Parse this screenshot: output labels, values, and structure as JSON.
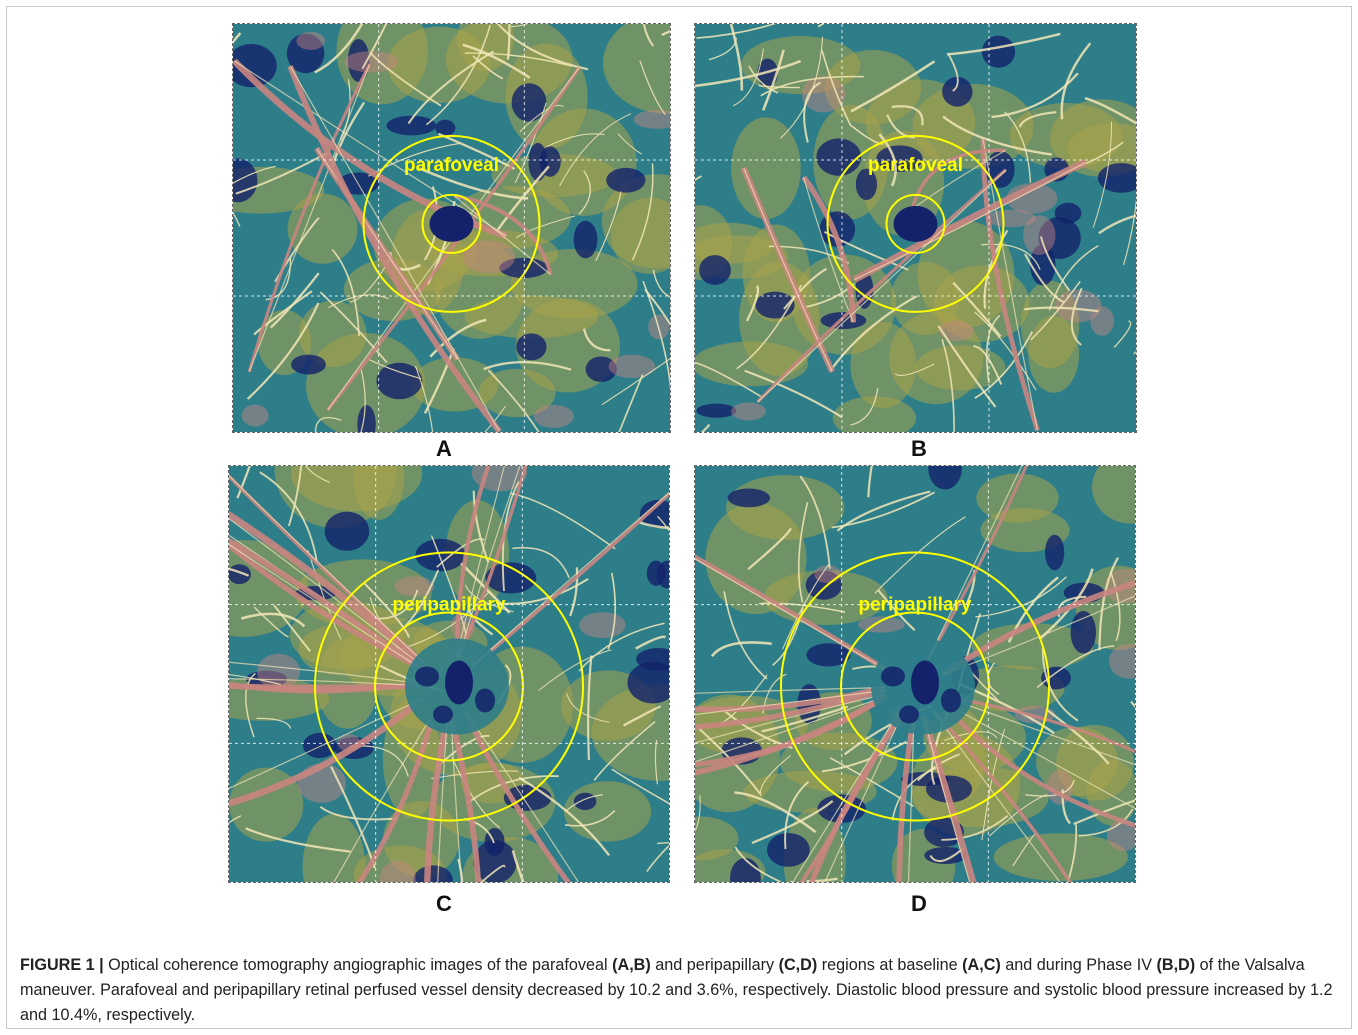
{
  "panels": [
    {
      "label": "A",
      "region_label": "parafoveal",
      "type": "parafoveal"
    },
    {
      "label": "B",
      "region_label": "parafoveal",
      "type": "parafoveal"
    },
    {
      "label": "C",
      "region_label": "peripapillary",
      "type": "peripapillary"
    },
    {
      "label": "D",
      "region_label": "peripapillary",
      "type": "peripapillary"
    }
  ],
  "colors": {
    "background": "#2e7e8a",
    "dark_patch": "#13226a",
    "yellow_zone": "#a8a24a",
    "vessel": "#f2e6b6",
    "large_vessel": "#c98580",
    "circle": "#ffff00"
  },
  "caption": {
    "t1": "FIGURE 1 |",
    "t2": " Optical coherence tomography angiographic images of the parafoveal ",
    "t3": "(A,B)",
    "t4": " and peripapillary ",
    "t5": "(C,D)",
    "t6": " regions at baseline ",
    "t7": "(A,C)",
    "t8": " and during Phase IV ",
    "t9": "(B,D)",
    "t10": " of the Valsalva maneuver. Parafoveal and peripapillary retinal perfused vessel density decreased by 10.2 and 3.6%, respectively. Diastolic blood pressure and systolic blood pressure increased by 1.2 and 10.4%, respectively."
  }
}
